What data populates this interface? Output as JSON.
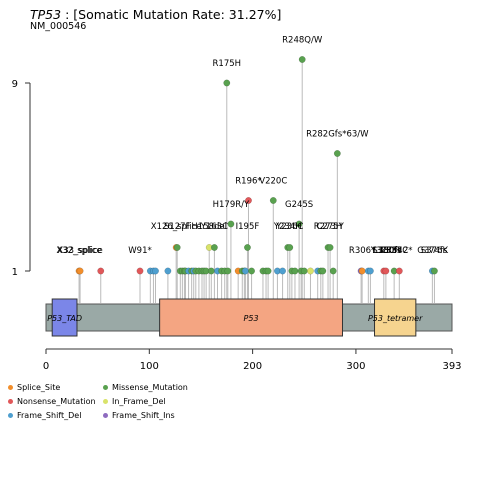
{
  "header": {
    "gene": "TP53",
    "title_rest": ": [Somatic Mutation Rate: 31.27%]",
    "subtitle": "NM_000546"
  },
  "colors": {
    "Splice_Site": "#f28e2b",
    "Nonsense_Mutation": "#e15759",
    "Frame_Shift_Del": "#4e9fcf",
    "Missense_Mutation": "#59a14f",
    "In_Frame_Del": "#d9e36a",
    "Frame_Shift_Ins": "#8e6bbf",
    "backbone": "#9aa9a6",
    "P53_TAD": "#7b86e8",
    "P53": "#f4a582",
    "P53_tetramer": "#f6d48f"
  },
  "legend": [
    {
      "label": "Splice_Site",
      "color": "#f28e2b"
    },
    {
      "label": "Missense_Mutation",
      "color": "#59a14f"
    },
    {
      "label": "Nonsense_Mutation",
      "color": "#e15759"
    },
    {
      "label": "In_Frame_Del",
      "color": "#d9e36a"
    },
    {
      "label": "Frame_Shift_Del",
      "color": "#4e9fcf"
    },
    {
      "label": "Frame_Shift_Ins",
      "color": "#8e6bbf"
    }
  ],
  "chart_data": {
    "type": "lollipop",
    "title": "TP53 : [Somatic Mutation Rate: 31.27%]",
    "subtitle": "NM_000546",
    "protein_length": 393,
    "xlim": [
      0,
      393
    ],
    "x_ticks": [
      0,
      100,
      200,
      300,
      393
    ],
    "y_ticks": [
      1,
      9
    ],
    "ylim": [
      0,
      11
    ],
    "domains": [
      {
        "name": "P53_TAD",
        "start": 6,
        "end": 30,
        "color": "#7b86e8"
      },
      {
        "name": "P53",
        "start": 110,
        "end": 287,
        "color": "#f4a582"
      },
      {
        "name": "P53_tetramer",
        "start": 318,
        "end": 358,
        "color": "#f6d48f"
      }
    ],
    "labels": [
      {
        "text": "R248Q/W",
        "pos": 248,
        "count": 10
      },
      {
        "text": "R175H",
        "pos": 175,
        "count": 9
      },
      {
        "text": "R282Gfs*63/W",
        "pos": 282,
        "count": 6
      },
      {
        "text": "R196*",
        "pos": 196,
        "count": 4
      },
      {
        "text": "V220C",
        "pos": 220,
        "count": 4
      },
      {
        "text": "H179R/Y",
        "pos": 179,
        "count": 3
      },
      {
        "text": "G245S",
        "pos": 245,
        "count": 3
      },
      {
        "text": "X126_splice",
        "pos": 126,
        "count": 2
      },
      {
        "text": "Y163C",
        "pos": 163,
        "count": 2
      },
      {
        "text": "I195F",
        "pos": 195,
        "count": 2
      },
      {
        "text": "H158del",
        "pos": 158,
        "count": 2
      },
      {
        "text": "Y234H",
        "pos": 234,
        "count": 2
      },
      {
        "text": "Y236C",
        "pos": 236,
        "count": 2
      },
      {
        "text": "R273H",
        "pos": 273,
        "count": 2
      },
      {
        "text": "C275Y",
        "pos": 275,
        "count": 2
      },
      {
        "text": "X32_splice",
        "pos": 32,
        "count": 1
      },
      {
        "text": "X33_splice",
        "pos": 33,
        "count": 1
      },
      {
        "text": "W91*",
        "pos": 91,
        "count": 1
      },
      {
        "text": "R342*",
        "pos": 342,
        "count": 1
      },
      {
        "text": "Y327*",
        "pos": 327,
        "count": 1
      },
      {
        "text": "R337C",
        "pos": 337,
        "count": 1
      },
      {
        "text": "S330fs",
        "pos": 330,
        "count": 1
      },
      {
        "text": "L330R",
        "pos": 330,
        "count": 1
      },
      {
        "text": "G374fs",
        "pos": 374,
        "count": 1
      },
      {
        "text": "S376K",
        "pos": 376,
        "count": 1
      },
      {
        "text": "S127F",
        "pos": 127,
        "count": 2
      },
      {
        "text": "R306*",
        "pos": 306,
        "count": 1
      }
    ],
    "mutations": [
      {
        "pos": 32,
        "count": 1,
        "type": "Splice_Site"
      },
      {
        "pos": 33,
        "count": 1,
        "type": "Splice_Site"
      },
      {
        "pos": 53,
        "count": 1,
        "type": "Nonsense_Mutation"
      },
      {
        "pos": 91,
        "count": 1,
        "type": "Nonsense_Mutation"
      },
      {
        "pos": 101,
        "count": 1,
        "type": "Frame_Shift_Del"
      },
      {
        "pos": 104,
        "count": 1,
        "type": "Frame_Shift_Del"
      },
      {
        "pos": 106,
        "count": 1,
        "type": "Frame_Shift_Del"
      },
      {
        "pos": 118,
        "count": 1,
        "type": "Frame_Shift_Del"
      },
      {
        "pos": 126,
        "count": 2,
        "type": "Splice_Site"
      },
      {
        "pos": 127,
        "count": 2,
        "type": "Missense_Mutation"
      },
      {
        "pos": 130,
        "count": 1,
        "type": "Missense_Mutation"
      },
      {
        "pos": 132,
        "count": 1,
        "type": "Missense_Mutation"
      },
      {
        "pos": 134,
        "count": 1,
        "type": "Missense_Mutation"
      },
      {
        "pos": 135,
        "count": 1,
        "type": "Missense_Mutation"
      },
      {
        "pos": 138,
        "count": 1,
        "type": "Frame_Shift_Del"
      },
      {
        "pos": 141,
        "count": 1,
        "type": "Missense_Mutation"
      },
      {
        "pos": 143,
        "count": 1,
        "type": "Frame_Shift_Del"
      },
      {
        "pos": 145,
        "count": 1,
        "type": "Missense_Mutation"
      },
      {
        "pos": 148,
        "count": 1,
        "type": "Missense_Mutation"
      },
      {
        "pos": 151,
        "count": 1,
        "type": "Missense_Mutation"
      },
      {
        "pos": 153,
        "count": 1,
        "type": "Missense_Mutation"
      },
      {
        "pos": 155,
        "count": 1,
        "type": "Missense_Mutation"
      },
      {
        "pos": 158,
        "count": 2,
        "type": "In_Frame_Del"
      },
      {
        "pos": 160,
        "count": 1,
        "type": "Missense_Mutation"
      },
      {
        "pos": 163,
        "count": 2,
        "type": "Missense_Mutation"
      },
      {
        "pos": 166,
        "count": 1,
        "type": "Frame_Shift_Del"
      },
      {
        "pos": 170,
        "count": 1,
        "type": "Missense_Mutation"
      },
      {
        "pos": 173,
        "count": 1,
        "type": "Missense_Mutation"
      },
      {
        "pos": 175,
        "count": 9,
        "type": "Missense_Mutation"
      },
      {
        "pos": 176,
        "count": 1,
        "type": "Missense_Mutation"
      },
      {
        "pos": 179,
        "count": 3,
        "type": "Missense_Mutation"
      },
      {
        "pos": 186,
        "count": 1,
        "type": "Splice_Site"
      },
      {
        "pos": 190,
        "count": 1,
        "type": "Missense_Mutation"
      },
      {
        "pos": 192,
        "count": 1,
        "type": "Missense_Mutation"
      },
      {
        "pos": 193,
        "count": 1,
        "type": "Frame_Shift_Del"
      },
      {
        "pos": 195,
        "count": 2,
        "type": "Missense_Mutation"
      },
      {
        "pos": 196,
        "count": 4,
        "type": "Nonsense_Mutation"
      },
      {
        "pos": 199,
        "count": 1,
        "type": "Missense_Mutation"
      },
      {
        "pos": 210,
        "count": 1,
        "type": "Missense_Mutation"
      },
      {
        "pos": 213,
        "count": 1,
        "type": "Missense_Mutation"
      },
      {
        "pos": 215,
        "count": 1,
        "type": "Missense_Mutation"
      },
      {
        "pos": 220,
        "count": 4,
        "type": "Missense_Mutation"
      },
      {
        "pos": 224,
        "count": 1,
        "type": "Frame_Shift_Del"
      },
      {
        "pos": 229,
        "count": 1,
        "type": "Frame_Shift_Del"
      },
      {
        "pos": 234,
        "count": 2,
        "type": "Missense_Mutation"
      },
      {
        "pos": 236,
        "count": 2,
        "type": "Missense_Mutation"
      },
      {
        "pos": 238,
        "count": 1,
        "type": "Missense_Mutation"
      },
      {
        "pos": 241,
        "count": 1,
        "type": "Missense_Mutation"
      },
      {
        "pos": 245,
        "count": 3,
        "type": "Missense_Mutation"
      },
      {
        "pos": 247,
        "count": 1,
        "type": "Missense_Mutation"
      },
      {
        "pos": 248,
        "count": 10,
        "type": "Missense_Mutation"
      },
      {
        "pos": 250,
        "count": 1,
        "type": "Missense_Mutation"
      },
      {
        "pos": 256,
        "count": 1,
        "type": "In_Frame_Del"
      },
      {
        "pos": 263,
        "count": 1,
        "type": "Frame_Shift_Del"
      },
      {
        "pos": 266,
        "count": 1,
        "type": "Missense_Mutation"
      },
      {
        "pos": 268,
        "count": 1,
        "type": "Missense_Mutation"
      },
      {
        "pos": 273,
        "count": 2,
        "type": "Missense_Mutation"
      },
      {
        "pos": 275,
        "count": 2,
        "type": "Missense_Mutation"
      },
      {
        "pos": 278,
        "count": 1,
        "type": "Missense_Mutation"
      },
      {
        "pos": 282,
        "count": 6,
        "type": "Missense_Mutation"
      },
      {
        "pos": 305,
        "count": 1,
        "type": "Frame_Shift_Ins"
      },
      {
        "pos": 306,
        "count": 1,
        "type": "Splice_Site"
      },
      {
        "pos": 312,
        "count": 1,
        "type": "Frame_Shift_Del"
      },
      {
        "pos": 314,
        "count": 1,
        "type": "Frame_Shift_Del"
      },
      {
        "pos": 327,
        "count": 1,
        "type": "Nonsense_Mutation"
      },
      {
        "pos": 329,
        "count": 1,
        "type": "Nonsense_Mutation"
      },
      {
        "pos": 337,
        "count": 1,
        "type": "Missense_Mutation"
      },
      {
        "pos": 342,
        "count": 1,
        "type": "Nonsense_Mutation"
      },
      {
        "pos": 374,
        "count": 1,
        "type": "Frame_Shift_Del"
      },
      {
        "pos": 376,
        "count": 1,
        "type": "Missense_Mutation"
      }
    ]
  }
}
